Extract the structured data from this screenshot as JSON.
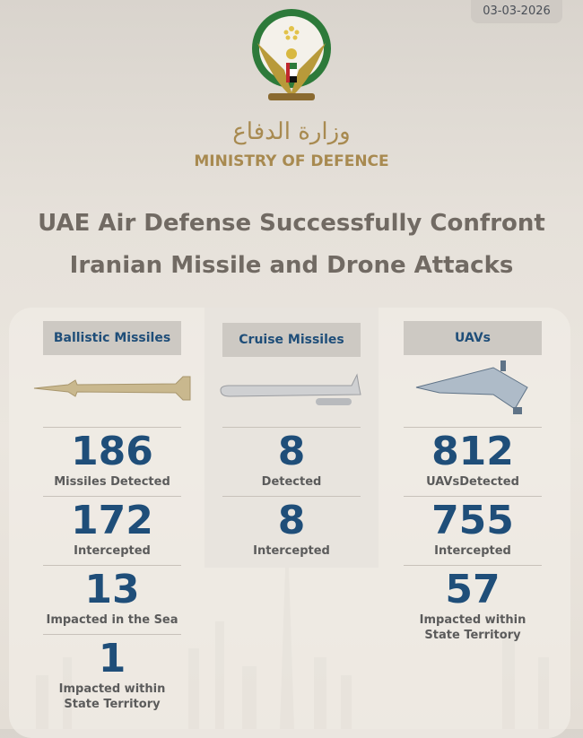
{
  "date": "03-03-2026",
  "org": {
    "arabic": "وزارة الدفاع",
    "english": "MINISTRY OF DEFENCE"
  },
  "title": {
    "line1": "UAE Air Defense Successfully Confront",
    "line2": "Iranian Missile and Drone Attacks"
  },
  "colors": {
    "number": "#1f4e79",
    "gold": "#a88a50",
    "title": "#716a63"
  },
  "columns": [
    {
      "header": "Ballistic Missiles",
      "image": "ballistic-missile",
      "stats": [
        {
          "value": "186",
          "label": "Missiles Detected"
        },
        {
          "value": "172",
          "label": "Intercepted"
        },
        {
          "value": "13",
          "label": "Impacted in the Sea"
        },
        {
          "value": "1",
          "label": "Impacted within State Territory"
        }
      ]
    },
    {
      "header": "Cruise Missiles",
      "image": "cruise-missile",
      "stats": [
        {
          "value": "8",
          "label": "Detected"
        },
        {
          "value": "8",
          "label": "Intercepted"
        }
      ]
    },
    {
      "header": "UAVs",
      "image": "drone",
      "stats": [
        {
          "value": "812",
          "label": "UAVsDetected"
        },
        {
          "value": "755",
          "label": "Intercepted"
        },
        {
          "value": "57",
          "label": "Impacted within State Territory"
        }
      ]
    }
  ]
}
